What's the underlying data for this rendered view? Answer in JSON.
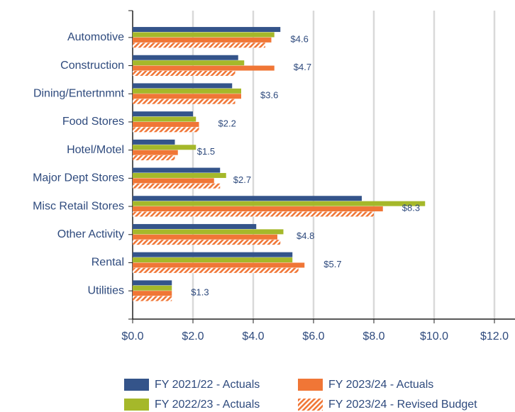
{
  "chart_data": {
    "type": "hbar",
    "categories": [
      "Automotive",
      "Construction",
      "Dining/Entertnmnt",
      "Food Stores",
      "Hotel/Motel",
      "Major Dept Stores",
      "Misc Retail Stores",
      "Other Activity",
      "Rental",
      "Utilities"
    ],
    "series": [
      {
        "name": "FY 2021/22 - Actuals",
        "color": "#34548a",
        "values": [
          4.9,
          3.5,
          3.3,
          2.0,
          1.4,
          2.9,
          7.6,
          4.1,
          5.3,
          1.3
        ]
      },
      {
        "name": "FY 2022/23 - Actuals",
        "color": "#a5b82a",
        "values": [
          4.7,
          3.7,
          3.6,
          2.1,
          2.1,
          3.1,
          9.7,
          5.0,
          5.3,
          1.3
        ]
      },
      {
        "name": "FY 2023/24 - Actuals",
        "color": "#f07636",
        "values": [
          4.6,
          4.7,
          3.6,
          2.2,
          1.5,
          2.7,
          8.3,
          4.8,
          5.7,
          1.3
        ],
        "value_labels": [
          "$4.6",
          "$4.7",
          "$3.6",
          "$2.2",
          "$1.5",
          "$2.7",
          "$8.3",
          "$4.8",
          "$5.7",
          "$1.3"
        ]
      },
      {
        "name": "FY 2023/24 - Revised Budget",
        "color": "#f07636",
        "hatch": true,
        "values": [
          4.4,
          3.4,
          3.4,
          2.2,
          1.4,
          2.9,
          8.0,
          4.9,
          5.5,
          1.3
        ]
      }
    ],
    "xlim": [
      0,
      12
    ],
    "xticks": [
      {
        "value": 0,
        "label": "$0.0"
      },
      {
        "value": 2,
        "label": "$2.0"
      },
      {
        "value": 4,
        "label": "$4.0"
      },
      {
        "value": 6,
        "label": "$6.0"
      },
      {
        "value": 8,
        "label": "$8.0"
      },
      {
        "value": 10,
        "label": "$10.0"
      },
      {
        "value": 12,
        "label": "$12.0"
      }
    ],
    "grid": true,
    "legend": "bottom"
  }
}
